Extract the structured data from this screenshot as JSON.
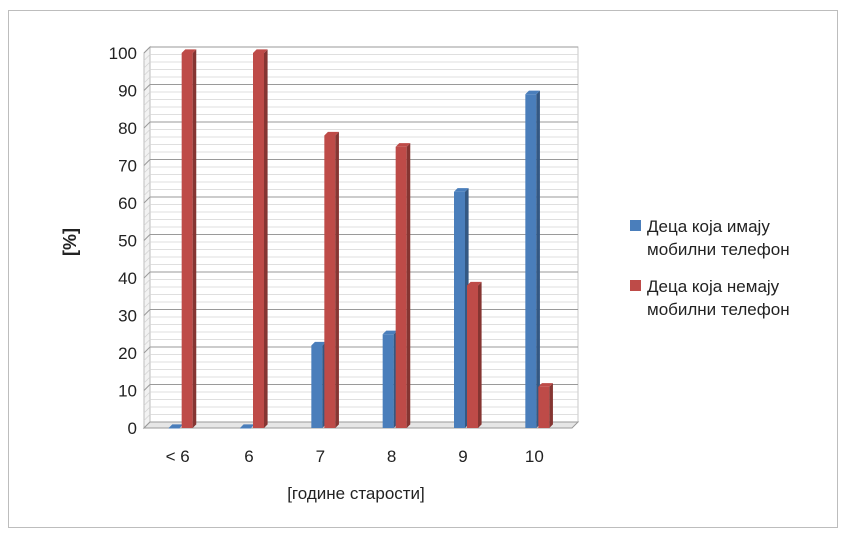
{
  "chart_data": {
    "type": "bar",
    "categories": [
      "< 6",
      "6",
      "7",
      "8",
      "9",
      "10"
    ],
    "series": [
      {
        "name": "Деца која имају мобилни телефон",
        "values": [
          0,
          0,
          22,
          25,
          63,
          89
        ],
        "color": "#4a7ebb"
      },
      {
        "name": "Деца која немају мобилни телефон",
        "values": [
          100,
          100,
          78,
          75,
          38,
          11
        ],
        "color": "#be4b48"
      }
    ],
    "xlabel": "[године старости]",
    "ylabel": "[%]",
    "ylim": [
      0,
      100
    ],
    "yticks": [
      "0",
      "10",
      "20",
      "30",
      "40",
      "50",
      "60",
      "70",
      "80",
      "90",
      "100"
    ],
    "grid": true,
    "legend_position": "right"
  }
}
